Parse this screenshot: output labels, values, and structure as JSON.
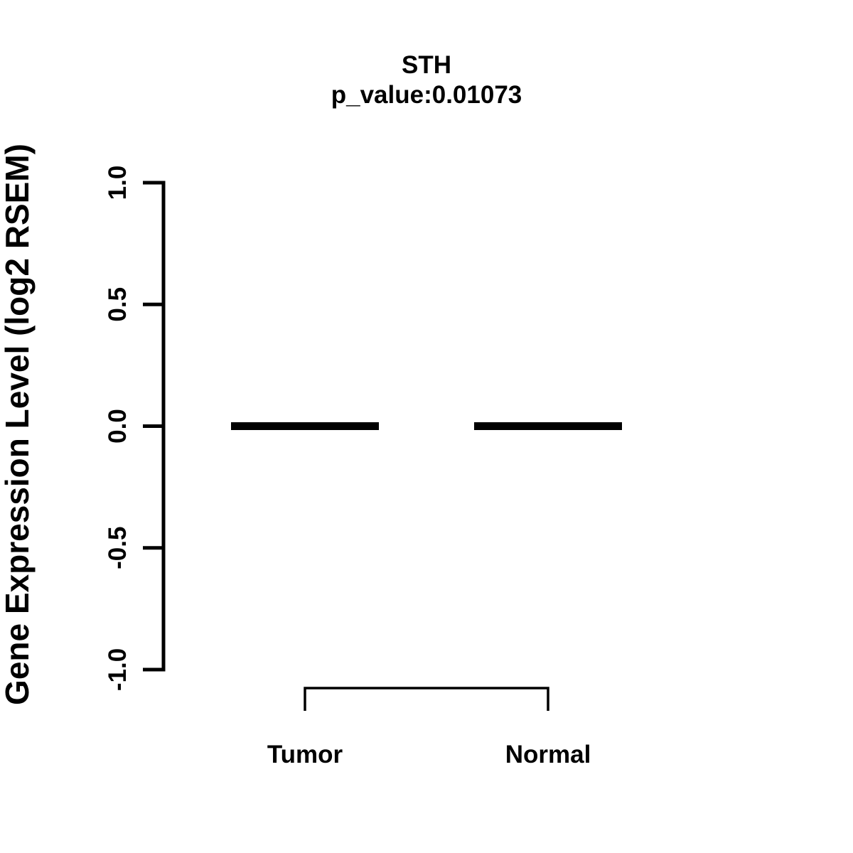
{
  "colors": {
    "foreground": "#000000",
    "background": "#ffffff"
  },
  "chart_data": {
    "type": "boxplot",
    "title": "STH",
    "subtitle": "p_value:0.01073",
    "p_value": 0.01073,
    "gene": "STH",
    "categories": [
      "Tumor",
      "Normal"
    ],
    "series": [
      {
        "name": "Tumor",
        "median": 0.0,
        "q1": 0.0,
        "q3": 0.0,
        "whisker_low": 0.0,
        "whisker_high": 0.0
      },
      {
        "name": "Normal",
        "median": 0.0,
        "q1": 0.0,
        "q3": 0.0,
        "whisker_low": 0.0,
        "whisker_high": 0.0
      }
    ],
    "xlabel": "",
    "ylabel": "Gene Expression Level (log2 RSEM)",
    "ylim": [
      -1.0,
      1.0
    ],
    "yticks": [
      -1.0,
      -0.5,
      0.0,
      0.5,
      1.0
    ],
    "ytick_labels": [
      "-1.0",
      "-0.5",
      "0.0",
      "0.5",
      "1.0"
    ],
    "grid": false,
    "legend": false,
    "comparison_bracket": {
      "between": [
        "Tumor",
        "Normal"
      ]
    }
  }
}
